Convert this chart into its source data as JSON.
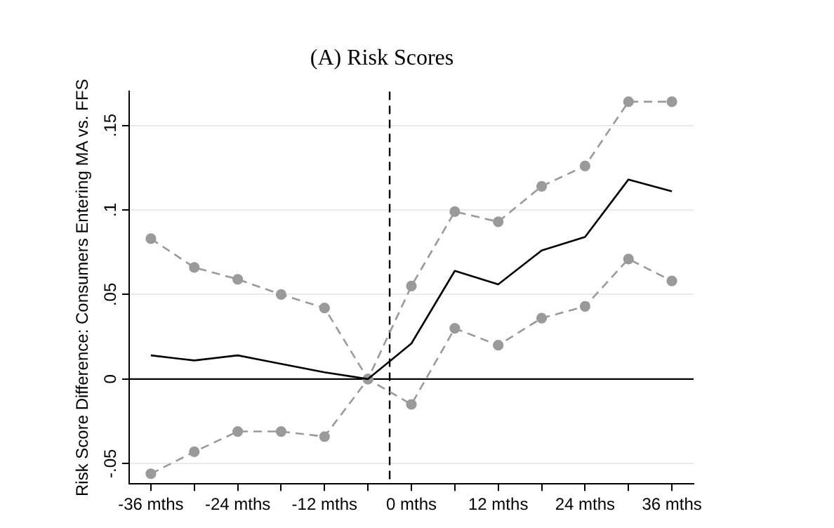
{
  "chart_data": {
    "type": "line",
    "title": "(A) Risk Scores",
    "ylabel": "Risk Score Difference: Consumers Entering MA vs. FFS",
    "x": [
      -36,
      -30,
      -24,
      -18,
      -12,
      -6,
      0,
      6,
      12,
      18,
      24,
      30,
      36
    ],
    "series": [
      {
        "color": "#000000",
        "marker": "none",
        "line_style": "solid",
        "values": [
          0.014,
          0.011,
          0.014,
          0.009,
          0.004,
          0,
          0.021,
          0.064,
          0.056,
          0.076,
          0.084,
          0.118,
          0.111
        ]
      },
      {
        "color": "#9a9a9a",
        "marker": "circle",
        "line_style": "dashed",
        "values": [
          0.083,
          0.066,
          0.059,
          0.05,
          0.042,
          0,
          0.055,
          0.099,
          0.093,
          0.114,
          0.126,
          0.164,
          0.164
        ]
      },
      {
        "color": "#9a9a9a",
        "marker": "circle",
        "line_style": "dashed",
        "values": [
          -0.056,
          -0.043,
          -0.031,
          -0.031,
          -0.034,
          0,
          -0.015,
          0.03,
          0.02,
          0.036,
          0.043,
          0.071,
          0.058
        ]
      }
    ],
    "xlim": [
      -39,
      39
    ],
    "xticks": [
      {
        "value": -36,
        "label": "-36 mths"
      },
      {
        "value": -30,
        "label": null
      },
      {
        "value": -24,
        "label": "-24 mths"
      },
      {
        "value": -18,
        "label": null
      },
      {
        "value": -12,
        "label": "-12 mths"
      },
      {
        "value": -6,
        "label": null
      },
      {
        "value": 0,
        "label": "0 mths"
      },
      {
        "value": 6,
        "label": null
      },
      {
        "value": 12,
        "label": "12 mths"
      },
      {
        "value": 18,
        "label": null
      },
      {
        "value": 24,
        "label": "24 mths"
      },
      {
        "value": 30,
        "label": null
      },
      {
        "value": 36,
        "label": "36 mths"
      }
    ],
    "ylim": [
      -0.062,
      0.17
    ],
    "yticks": [
      {
        "value": -0.05,
        "label": "-.05"
      },
      {
        "value": 0,
        "label": "0"
      },
      {
        "value": 0.05,
        "label": ".05"
      },
      {
        "value": 0.1,
        "label": ".1"
      },
      {
        "value": 0.15,
        "label": ".15"
      }
    ],
    "grid": "y",
    "legend": false,
    "ref_lines": [
      {
        "axis": "y",
        "value": 0,
        "color": "#000000",
        "line_style": "solid"
      },
      {
        "axis": "x",
        "value": -3,
        "color": "#000000",
        "line_style": "dashed"
      }
    ]
  }
}
